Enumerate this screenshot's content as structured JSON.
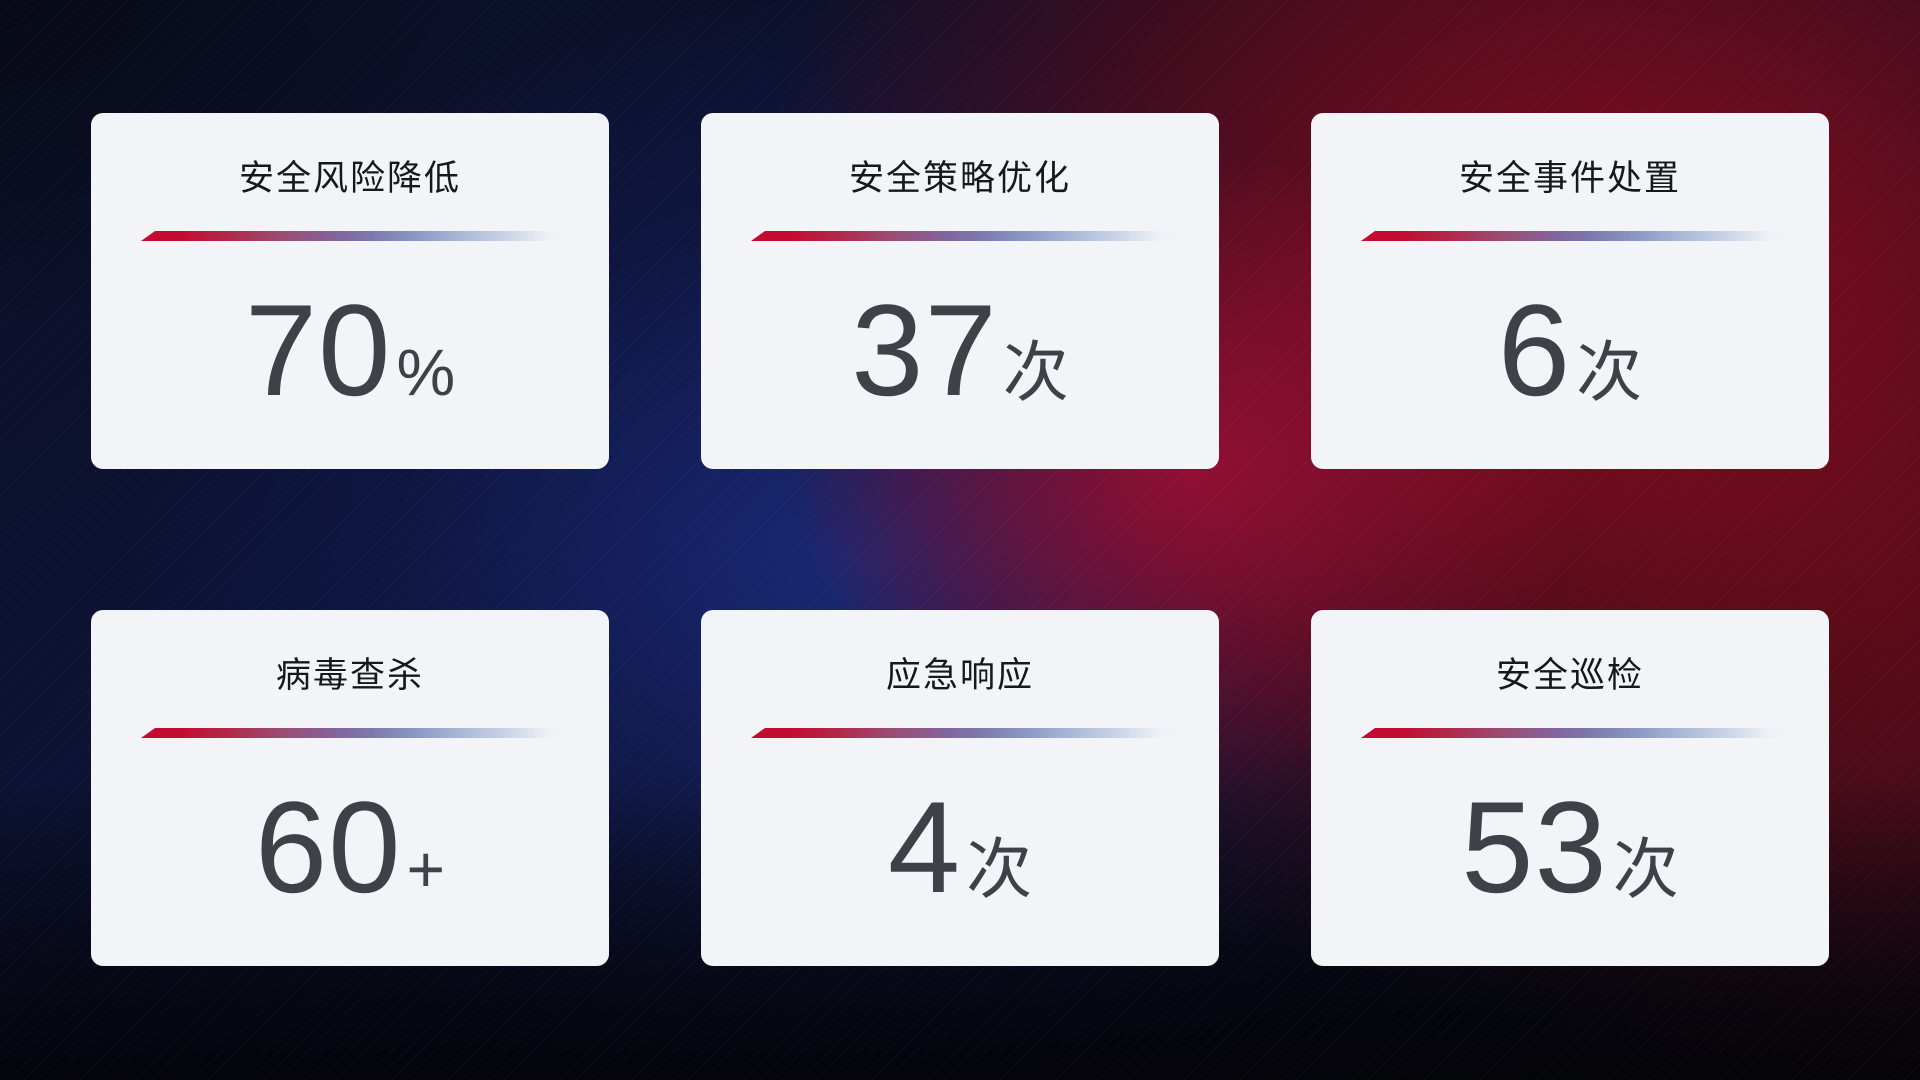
{
  "cards": [
    {
      "title": "安全风险降低",
      "value": "70",
      "unit": "%"
    },
    {
      "title": "安全策略优化",
      "value": "37",
      "unit": "次"
    },
    {
      "title": "安全事件处置",
      "value": "6",
      "unit": "次"
    },
    {
      "title": "病毒查杀",
      "value": "60",
      "unit": "+"
    },
    {
      "title": "应急响应",
      "value": "4",
      "unit": "次"
    },
    {
      "title": "安全巡检",
      "value": "53",
      "unit": "次"
    }
  ],
  "colors": {
    "accent_red": "#c30c30",
    "divider_blue": "#8b98c4",
    "card_background": "#f3f4f7",
    "title_text": "#17181c",
    "value_text": "#3e4147",
    "background_navy": "#0c1233",
    "background_crimson": "#a00f2f"
  }
}
